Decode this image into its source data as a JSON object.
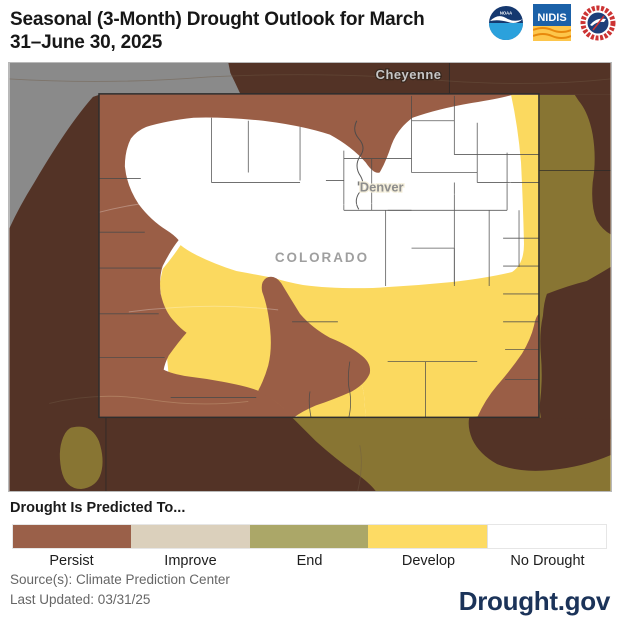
{
  "header": {
    "title_line1": "Seasonal (3-Month) Drought Outlook for March",
    "title_line2": "31–June 30, 2025",
    "logos": {
      "noaa_label": "NOAA",
      "nidis_label": "NIDIS",
      "nws_label": "NATIONAL WEATHER SERVICE"
    }
  },
  "map": {
    "labels": {
      "city_outside": "Cheyenne",
      "city_inside": "Denver",
      "state": "COLORADO"
    },
    "colors": {
      "persist_bright": "#9A5E46",
      "develop_bright": "#FBD95F",
      "no_drought": "#FFFFFF",
      "outside_mask": "rgba(0,0,0,0.46)",
      "outside_gray": "#8C8C8C",
      "outside_persist_dark": "#553427",
      "outside_develop_olive": "#8A7734"
    }
  },
  "legend": {
    "title": "Drought Is Predicted To...",
    "items": [
      {
        "label": "Persist",
        "color": "#9A6049"
      },
      {
        "label": "Improve",
        "color": "#DBD0BC"
      },
      {
        "label": "End",
        "color": "#ABA768"
      },
      {
        "label": "Develop",
        "color": "#FDDB64"
      },
      {
        "label": "No Drought",
        "color": "#FFFFFF"
      }
    ]
  },
  "footer": {
    "source": "Source(s): Climate Prediction Center",
    "updated": "Last Updated: 03/31/25",
    "brand": "Drought.gov"
  }
}
